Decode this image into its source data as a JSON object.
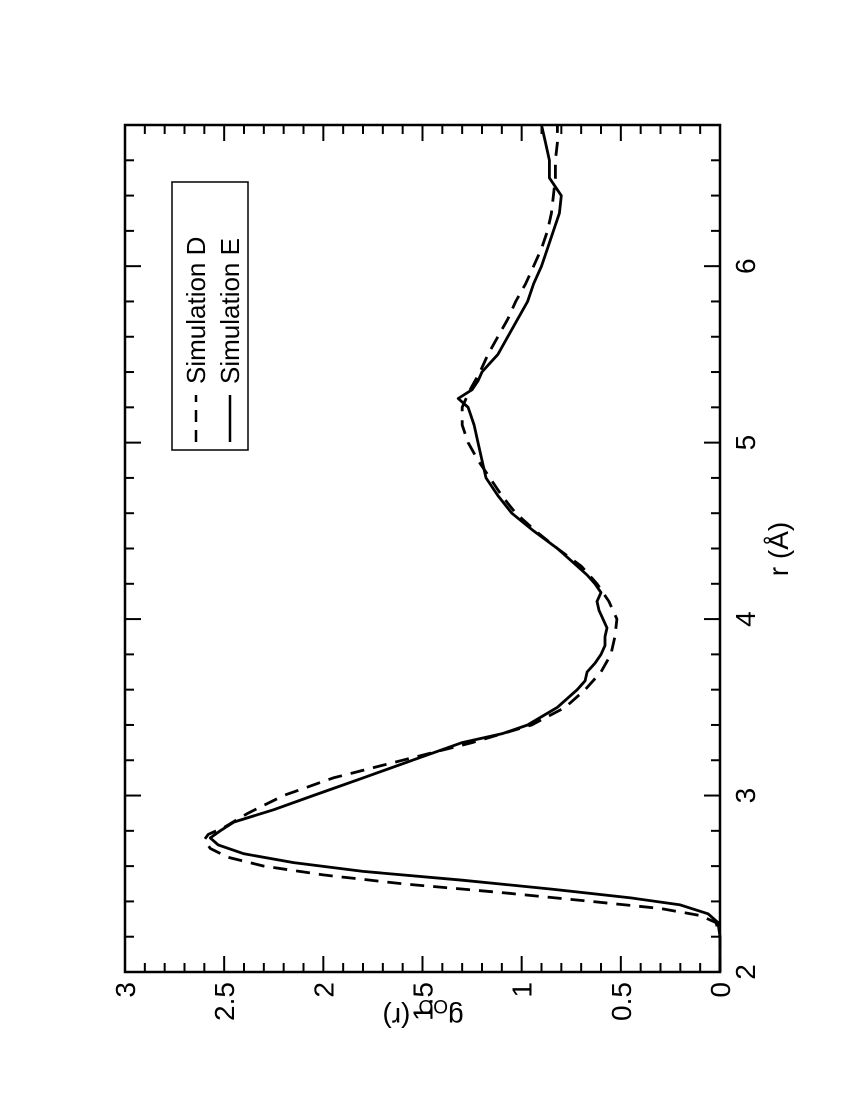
{
  "chart_data": {
    "type": "line",
    "orientation": "rotated-90-counterclockwise",
    "xlabel": "r (Å)",
    "ylabel": "g",
    "ylabel_subscript": "OO",
    "ylabel_suffix": "(r)",
    "xlim": [
      2,
      6.8
    ],
    "ylim": [
      0,
      3
    ],
    "x_ticks": [
      "2",
      "3",
      "4",
      "5",
      "6"
    ],
    "y_ticks": [
      "0",
      "0.5",
      "1",
      "1.5",
      "2",
      "2.5",
      "3"
    ],
    "grid": false,
    "legend_position": "top-right",
    "series": [
      {
        "name": "Simulation D",
        "style": "dashed",
        "color": "#000000",
        "x": [
          2.0,
          2.1,
          2.2,
          2.28,
          2.32,
          2.36,
          2.4,
          2.45,
          2.5,
          2.55,
          2.6,
          2.65,
          2.7,
          2.75,
          2.78,
          2.82,
          2.9,
          3.0,
          3.1,
          3.2,
          3.3,
          3.4,
          3.5,
          3.6,
          3.7,
          3.8,
          3.9,
          4.0,
          4.1,
          4.2,
          4.3,
          4.4,
          4.5,
          4.6,
          4.7,
          4.8,
          4.9,
          5.0,
          5.1,
          5.2,
          5.25,
          5.3,
          5.4,
          5.5,
          5.6,
          5.7,
          5.8,
          5.9,
          6.0,
          6.1,
          6.2,
          6.3,
          6.4,
          6.5,
          6.6,
          6.7,
          6.8
        ],
        "y": [
          0.0,
          0.0,
          0.0,
          0.02,
          0.1,
          0.3,
          0.65,
          1.1,
          1.6,
          2.0,
          2.3,
          2.48,
          2.57,
          2.6,
          2.58,
          2.5,
          2.38,
          2.2,
          1.95,
          1.6,
          1.25,
          0.95,
          0.78,
          0.68,
          0.6,
          0.55,
          0.53,
          0.52,
          0.56,
          0.62,
          0.7,
          0.82,
          0.93,
          1.03,
          1.1,
          1.16,
          1.22,
          1.27,
          1.3,
          1.3,
          1.28,
          1.26,
          1.21,
          1.17,
          1.12,
          1.07,
          1.03,
          0.98,
          0.94,
          0.9,
          0.87,
          0.85,
          0.84,
          0.83,
          0.83,
          0.82,
          0.82
        ]
      },
      {
        "name": "Simulation E",
        "style": "solid",
        "color": "#000000",
        "x": [
          2.0,
          2.1,
          2.2,
          2.28,
          2.33,
          2.38,
          2.42,
          2.47,
          2.52,
          2.57,
          2.62,
          2.67,
          2.72,
          2.76,
          2.8,
          2.85,
          2.92,
          3.0,
          3.1,
          3.2,
          3.3,
          3.35,
          3.4,
          3.5,
          3.6,
          3.65,
          3.7,
          3.75,
          3.8,
          3.85,
          3.9,
          3.95,
          4.0,
          4.05,
          4.1,
          4.15,
          4.2,
          4.25,
          4.3,
          4.4,
          4.5,
          4.6,
          4.7,
          4.8,
          4.9,
          5.0,
          5.1,
          5.2,
          5.25,
          5.3,
          5.35,
          5.4,
          5.45,
          5.5,
          5.6,
          5.7,
          5.8,
          5.9,
          6.0,
          6.1,
          6.2,
          6.3,
          6.4,
          6.45,
          6.5,
          6.6,
          6.7,
          6.8
        ],
        "y": [
          0.0,
          0.0,
          0.0,
          0.01,
          0.06,
          0.2,
          0.45,
          0.85,
          1.3,
          1.8,
          2.15,
          2.4,
          2.53,
          2.57,
          2.52,
          2.45,
          2.25,
          2.05,
          1.8,
          1.55,
          1.3,
          1.1,
          0.97,
          0.82,
          0.72,
          0.68,
          0.67,
          0.63,
          0.6,
          0.58,
          0.58,
          0.57,
          0.59,
          0.61,
          0.62,
          0.6,
          0.63,
          0.67,
          0.72,
          0.82,
          0.94,
          1.05,
          1.12,
          1.18,
          1.2,
          1.22,
          1.24,
          1.27,
          1.32,
          1.25,
          1.22,
          1.2,
          1.16,
          1.12,
          1.07,
          1.02,
          0.97,
          0.94,
          0.9,
          0.87,
          0.84,
          0.81,
          0.8,
          0.83,
          0.86,
          0.86,
          0.88,
          0.9
        ]
      }
    ]
  }
}
